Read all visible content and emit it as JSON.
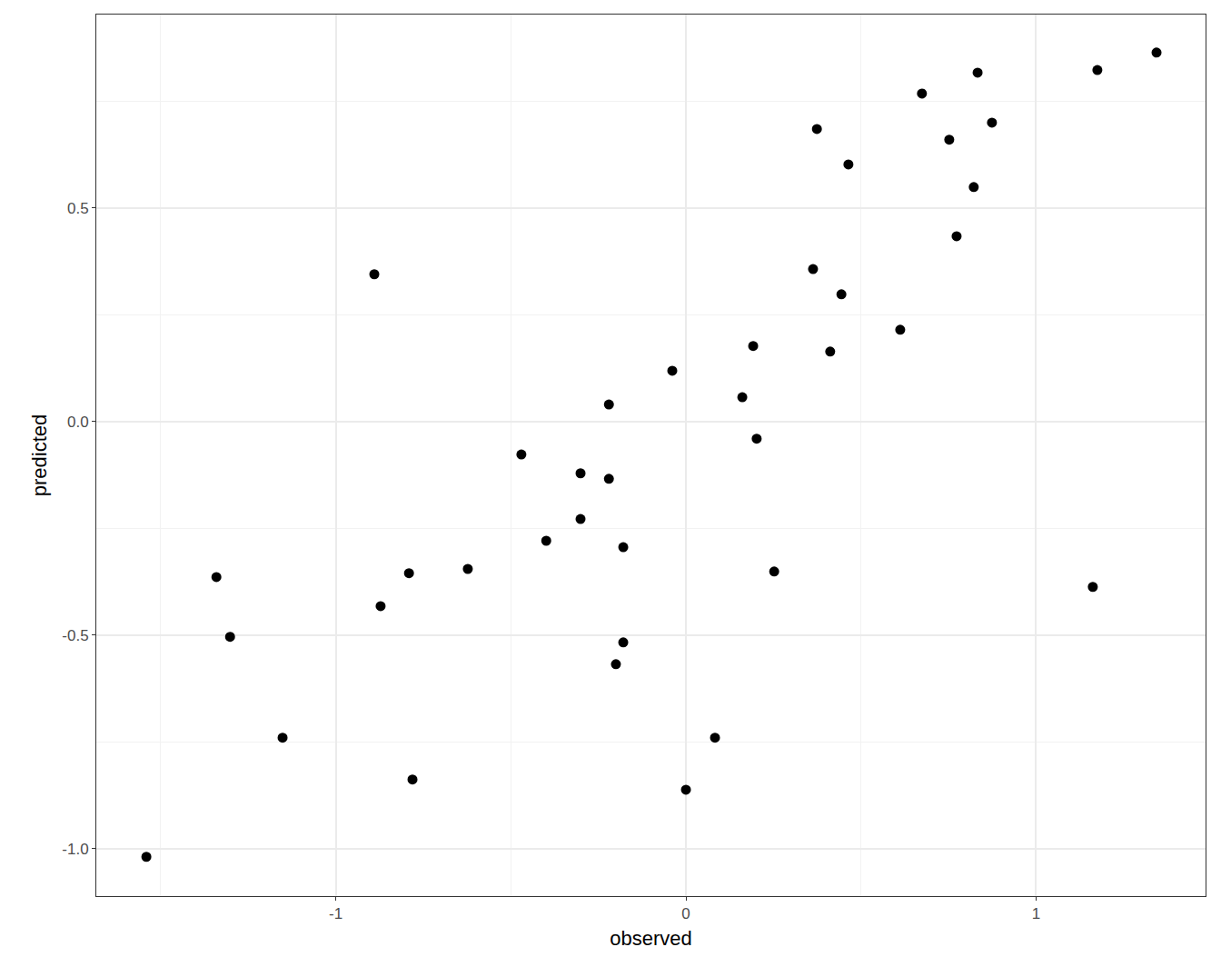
{
  "chart_data": {
    "type": "scatter",
    "x_label": "observed",
    "y_label": "predicted",
    "color": "#000000",
    "marker": "circle",
    "grid": true,
    "x": [
      -1.541,
      -1.341,
      -1.302,
      -1.152,
      -0.89,
      -0.872,
      -0.791,
      -0.781,
      -0.623,
      -0.47,
      -0.399,
      -0.301,
      -0.301,
      -0.22,
      -0.22,
      -0.179,
      -0.179,
      -0.2,
      -0.039,
      0.0,
      0.083,
      0.161,
      0.192,
      0.202,
      0.252,
      0.363,
      0.374,
      0.412,
      0.444,
      0.464,
      0.612,
      0.674,
      0.752,
      0.773,
      0.822,
      0.833,
      0.874,
      1.162,
      1.175,
      1.344
    ],
    "values": [
      -1.019,
      -0.364,
      -0.504,
      -0.74,
      0.345,
      -0.432,
      -0.355,
      -0.838,
      -0.345,
      -0.077,
      -0.279,
      -0.121,
      -0.228,
      0.04,
      -0.134,
      -0.294,
      -0.517,
      -0.568,
      0.119,
      -0.862,
      -0.74,
      0.057,
      0.177,
      -0.04,
      -0.351,
      0.357,
      0.685,
      0.164,
      0.298,
      0.602,
      0.215,
      0.768,
      0.66,
      0.434,
      0.549,
      0.817,
      0.7,
      -0.387,
      0.823,
      0.864
    ],
    "xlim": [
      -1.684,
      1.484
    ],
    "xticks": [
      -1,
      0,
      1
    ],
    "ylim": [
      -1.111,
      0.953
    ],
    "yticks": [
      {
        "value": -1.0,
        "label": "-1.0"
      },
      -0.5,
      {
        "value": 0.0,
        "label": "0.0"
      },
      0.5
    ]
  }
}
